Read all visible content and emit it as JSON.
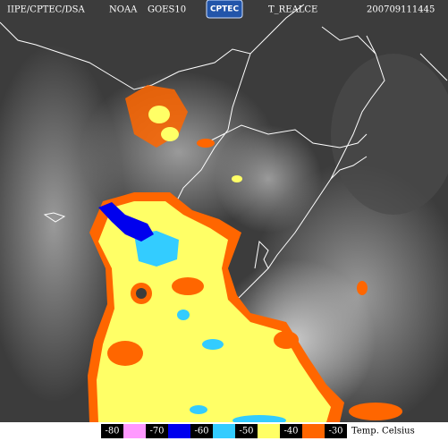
{
  "header": {
    "source": "IIPE/CPTEC/DSA",
    "agency": "NOAA",
    "satellite": "GOES10",
    "logo": "CPTEC",
    "product": "T_REALCE",
    "timestamp": "200709111445"
  },
  "legend": {
    "labels": [
      "-80",
      "-70",
      "-60",
      "-50",
      "-40",
      "-30"
    ],
    "colors": [
      "#ff99ff",
      "#0000ee",
      "#33ccff",
      "#ffff66",
      "#ff6600"
    ],
    "unit": "Temp. Celsius"
  }
}
